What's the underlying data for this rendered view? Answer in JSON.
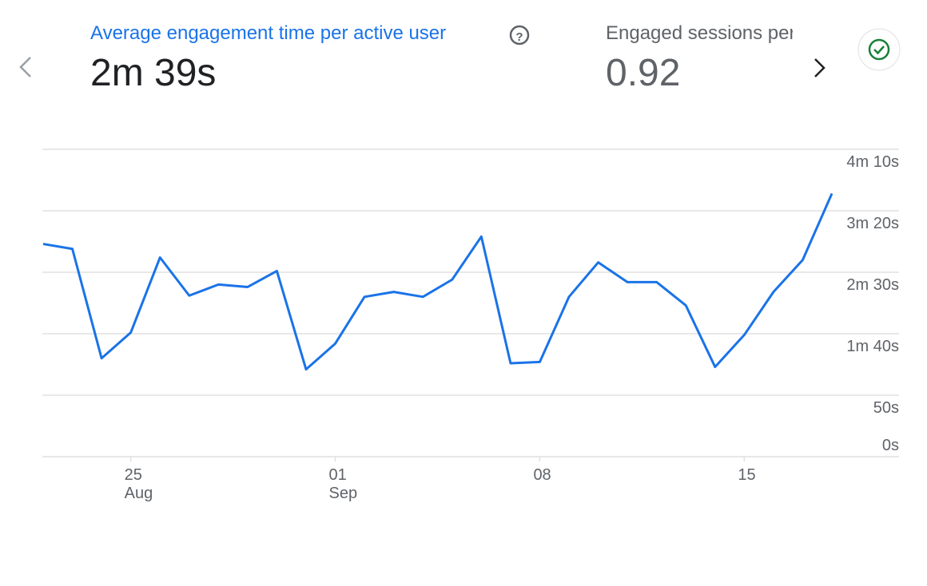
{
  "header": {
    "metrics": [
      {
        "title": "Average engagement time per active user",
        "value": "2m 39s"
      },
      {
        "title": "Engaged sessions per active user",
        "value": "0.92"
      }
    ]
  },
  "chart_data": {
    "type": "line",
    "categories": [
      null,
      null,
      null,
      "25",
      null,
      null,
      null,
      null,
      null,
      null,
      "01",
      null,
      null,
      null,
      null,
      null,
      null,
      "08",
      null,
      null,
      null,
      null,
      null,
      null,
      "15",
      null,
      null,
      null
    ],
    "category_sublabels": [
      null,
      null,
      null,
      "Aug",
      null,
      null,
      null,
      null,
      null,
      null,
      "Sep",
      null,
      null,
      null,
      null,
      null,
      null,
      null,
      null,
      null,
      null,
      null,
      null,
      null,
      null,
      null,
      null,
      null
    ],
    "series": [
      {
        "name": "Average engagement time per active user",
        "color": "#1a73e8",
        "values": [
          173,
          169,
          80,
          101,
          162,
          131,
          140,
          138,
          151,
          71,
          92,
          130,
          134,
          130,
          144,
          179,
          76,
          77,
          130,
          158,
          142,
          142,
          123,
          73,
          99,
          134,
          160,
          214
        ]
      }
    ],
    "ylim": [
      0,
      250
    ],
    "yticks": [
      {
        "value": 0,
        "label": "0s"
      },
      {
        "value": 50,
        "label": "50s"
      },
      {
        "value": 100,
        "label": "1m 40s"
      },
      {
        "value": 150,
        "label": "2m 30s"
      },
      {
        "value": 200,
        "label": "3m 20s"
      },
      {
        "value": 250,
        "label": "4m 10s"
      }
    ],
    "grid": true
  }
}
